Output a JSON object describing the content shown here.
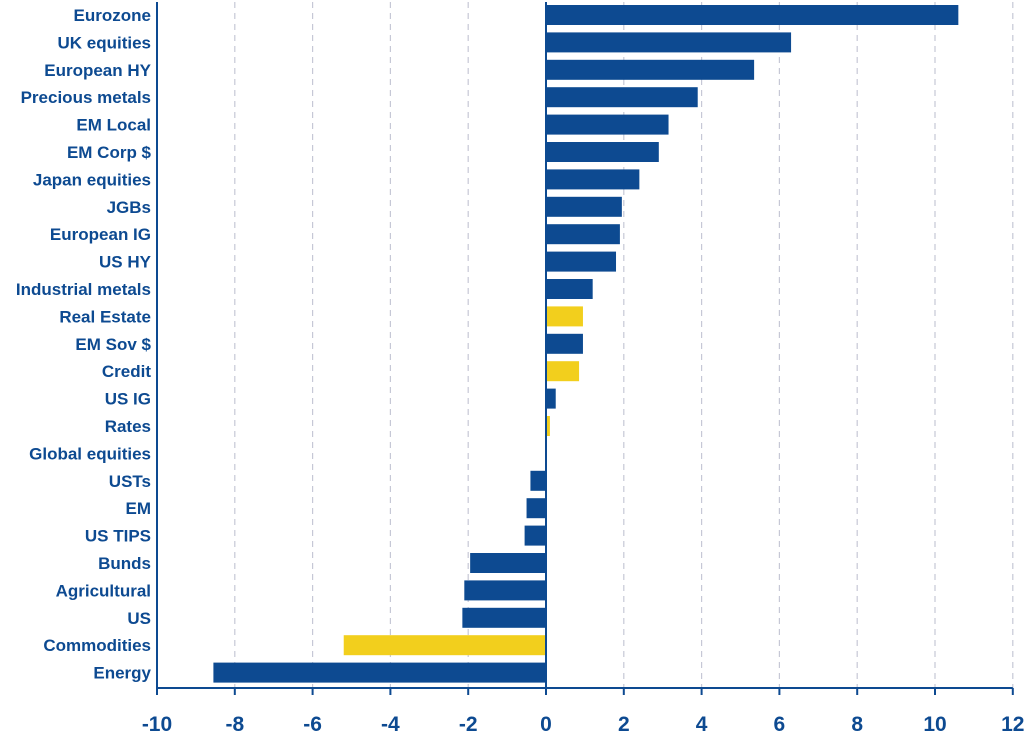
{
  "chart_data": {
    "type": "bar",
    "orientation": "horizontal",
    "categories": [
      "Eurozone",
      "UK equities",
      "European HY",
      "Precious metals",
      "EM Local",
      "EM Corp $",
      "Japan equities",
      "JGBs",
      "European IG",
      "US HY",
      "Industrial metals",
      "Real Estate",
      "EM Sov $",
      "Credit",
      "US IG",
      "Rates",
      "Global equities",
      "USTs",
      "EM",
      "US TIPS",
      "Bunds",
      "Agricultural",
      "US",
      "Commodities",
      "Energy"
    ],
    "values": [
      10.6,
      6.3,
      5.35,
      3.9,
      3.15,
      2.9,
      2.4,
      1.95,
      1.9,
      1.8,
      1.2,
      0.95,
      0.95,
      0.85,
      0.25,
      0.1,
      0.0,
      -0.4,
      -0.5,
      -0.55,
      -1.95,
      -2.1,
      -2.15,
      -5.2,
      -8.55
    ],
    "bar_colors": [
      "#0d4a91",
      "#0d4a91",
      "#0d4a91",
      "#0d4a91",
      "#0d4a91",
      "#0d4a91",
      "#0d4a91",
      "#0d4a91",
      "#0d4a91",
      "#0d4a91",
      "#0d4a91",
      "#f2cf1d",
      "#0d4a91",
      "#f2cf1d",
      "#0d4a91",
      "#f2cf1d",
      "#0d4a91",
      "#0d4a91",
      "#0d4a91",
      "#0d4a91",
      "#0d4a91",
      "#0d4a91",
      "#0d4a91",
      "#f2cf1d",
      "#0d4a91"
    ],
    "xlim": [
      -10,
      12
    ],
    "xticks": [
      -10,
      -8,
      -6,
      -4,
      -2,
      0,
      2,
      4,
      6,
      8,
      10,
      12
    ],
    "xtick_labels": [
      "-10",
      "-8",
      "-6",
      "-4",
      "-2",
      "0",
      "2",
      "4",
      "6",
      "8",
      "10",
      "12"
    ],
    "grid": "vertical dashed",
    "colors": {
      "primary": "#0d4a91",
      "highlight": "#f2cf1d",
      "grid": "#c6c8d6"
    }
  }
}
